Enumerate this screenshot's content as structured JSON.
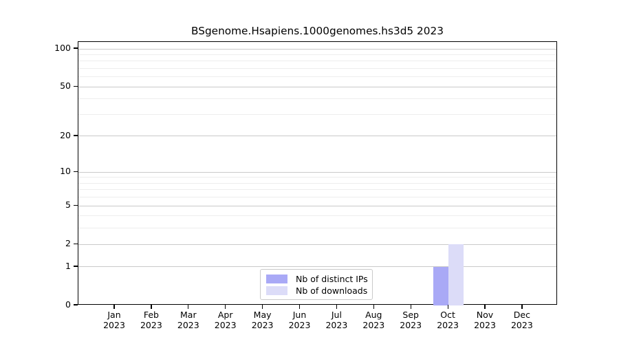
{
  "figure": {
    "background": "#ffffff"
  },
  "chart_data": {
    "type": "bar",
    "title": "BSgenome.Hsapiens.1000genomes.hs3d5 2023",
    "x_axis": {
      "categories": [
        "Jan",
        "Feb",
        "Mar",
        "Apr",
        "May",
        "Jun",
        "Jul",
        "Aug",
        "Sep",
        "Oct",
        "Nov",
        "Dec"
      ],
      "year": "2023"
    },
    "y_axis": {
      "scale": "log1p",
      "tick_values": [
        0,
        1,
        2,
        5,
        10,
        20,
        50,
        100
      ],
      "minor_gridline_values": [
        3,
        4,
        6,
        7,
        8,
        9,
        30,
        40,
        60,
        70,
        80,
        90
      ],
      "ylim": [
        0,
        100
      ]
    },
    "series": [
      {
        "name": "Nb of distinct IPs",
        "color": "#a9a9f6",
        "values": [
          0,
          0,
          0,
          0,
          0,
          0,
          0,
          0,
          0,
          1,
          0,
          0
        ]
      },
      {
        "name": "Nb of downloads",
        "color": "#dcdcf8",
        "values": [
          0,
          0,
          0,
          0,
          0,
          0,
          0,
          0,
          0,
          2,
          0,
          0
        ]
      }
    ],
    "legend": {
      "position": "bottom-center"
    },
    "colors": {
      "major_gridline": "#c9c9c9",
      "minor_gridline": "#ededed",
      "axis": "#000000"
    }
  }
}
